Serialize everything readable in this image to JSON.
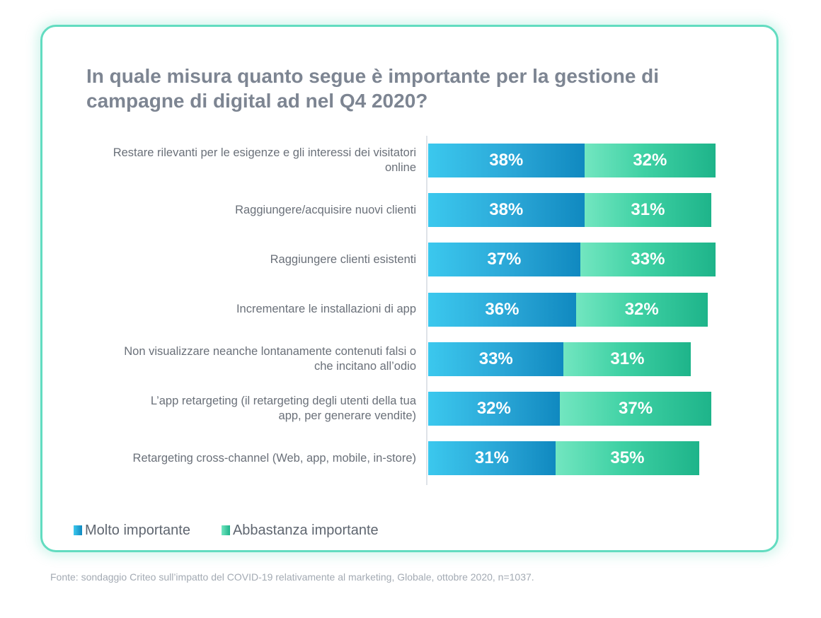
{
  "chart_data": {
    "type": "bar",
    "orientation": "horizontal",
    "stacked": true,
    "title": "In quale misura quanto segue è importante per la gestione di campagne di digital ad nel Q4 2020?",
    "title_lines": [
      "In quale misura quanto segue è importante per la gestione di",
      "campagne di digital ad nel Q4 2020?"
    ],
    "categories": [
      [
        "Restare rilevanti per le esigenze e gli interessi dei visitatori",
        "online"
      ],
      [
        "Raggiungere/acquisire nuovi clienti"
      ],
      [
        "Raggiungere clienti esistenti"
      ],
      [
        "Incrementare le installazioni di app"
      ],
      [
        "Non visualizzare neanche lontanamente contenuti falsi o",
        "che incitano all’odio"
      ],
      [
        "L’app retargeting (il retargeting degli utenti della tua",
        "app, per generare vendite)"
      ],
      [
        "Retargeting cross-channel (Web, app, mobile, in-store)"
      ]
    ],
    "series": [
      {
        "name": "Molto importante",
        "color": "#1f9fd4",
        "values": [
          38,
          38,
          37,
          36,
          33,
          32,
          31
        ]
      },
      {
        "name": "Abbastanza importante",
        "color": "#2fc597",
        "values": [
          32,
          31,
          33,
          32,
          31,
          37,
          35
        ]
      }
    ],
    "unit": "%",
    "xlim": [
      0,
      71
    ],
    "legend_position": "bottom-left",
    "grid": false
  },
  "source_note": "Fonte: sondaggio Criteo sull’impatto del COVID-19 relativamente al marketing, Globale, ottobre 2020, n=1037.",
  "colors": {
    "border": "#62dcc0",
    "title": "#7d8592"
  }
}
